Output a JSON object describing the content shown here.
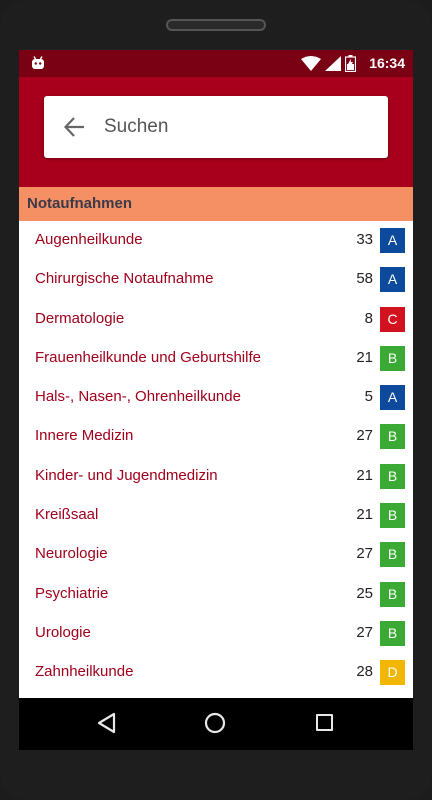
{
  "statusbar": {
    "time": "16:34"
  },
  "search": {
    "placeholder": "Suchen"
  },
  "section": {
    "title": "Notaufnahmen"
  },
  "badge_colors": {
    "A": "#0d4a9c",
    "B": "#3aaa35",
    "C": "#d11320",
    "D": "#f2b705"
  },
  "departments": [
    {
      "name": "Augenheilkunde",
      "count": "33",
      "grade": "A"
    },
    {
      "name": "Chirurgische Notaufnahme",
      "count": "58",
      "grade": "A"
    },
    {
      "name": "Dermatologie",
      "count": "8",
      "grade": "C"
    },
    {
      "name": "Frauenheilkunde und Geburtshilfe",
      "count": "21",
      "grade": "B"
    },
    {
      "name": "Hals-, Nasen-, Ohrenheilkunde",
      "count": "5",
      "grade": "A"
    },
    {
      "name": "Innere Medizin",
      "count": "27",
      "grade": "B"
    },
    {
      "name": "Kinder- und Jugendmedizin",
      "count": "21",
      "grade": "B"
    },
    {
      "name": "Kreißsaal",
      "count": "21",
      "grade": "B"
    },
    {
      "name": "Neurologie",
      "count": "27",
      "grade": "B"
    },
    {
      "name": "Psychiatrie",
      "count": "25",
      "grade": "B"
    },
    {
      "name": "Urologie",
      "count": "27",
      "grade": "B"
    },
    {
      "name": "Zahnheilkunde",
      "count": "28",
      "grade": "D"
    }
  ]
}
